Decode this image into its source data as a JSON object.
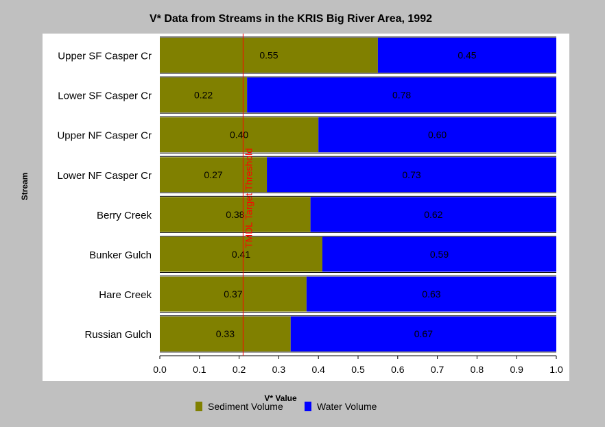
{
  "chart_data": {
    "type": "bar",
    "orientation": "horizontal",
    "stacked": true,
    "title": "V* Data from Streams in the KRIS Big River Area, 1992",
    "xlabel": "V* Value",
    "ylabel": "Stream",
    "xlim": [
      0.0,
      1.0
    ],
    "xticks": [
      "0.0",
      "0.1",
      "0.2",
      "0.3",
      "0.4",
      "0.5",
      "0.6",
      "0.7",
      "0.8",
      "0.9",
      "1.0"
    ],
    "categories": [
      "Upper SF Casper Cr",
      "Lower SF Casper Cr",
      "Upper NF Casper Cr",
      "Lower NF Casper Cr",
      "Berry Creek",
      "Bunker Gulch",
      "Hare Creek",
      "Russian Gulch"
    ],
    "series": [
      {
        "name": "Sediment Volume",
        "color": "#808000",
        "values": [
          0.55,
          0.22,
          0.4,
          0.27,
          0.38,
          0.41,
          0.37,
          0.33
        ],
        "labels": [
          "0.55",
          "0.22",
          "0.40",
          "0.27",
          "0.38",
          "0.41",
          "0.37",
          "0.33"
        ]
      },
      {
        "name": "Water Volume",
        "color": "#0000ff",
        "values": [
          0.45,
          0.78,
          0.6,
          0.73,
          0.62,
          0.59,
          0.63,
          0.67
        ],
        "labels": [
          "0.45",
          "0.78",
          "0.60",
          "0.73",
          "0.62",
          "0.59",
          "0.63",
          "0.67"
        ]
      }
    ],
    "reference_line": {
      "value": 0.21,
      "label": "TMDL Target Threshold",
      "color": "#ff0000"
    },
    "legend_position": "bottom",
    "grid": false
  }
}
